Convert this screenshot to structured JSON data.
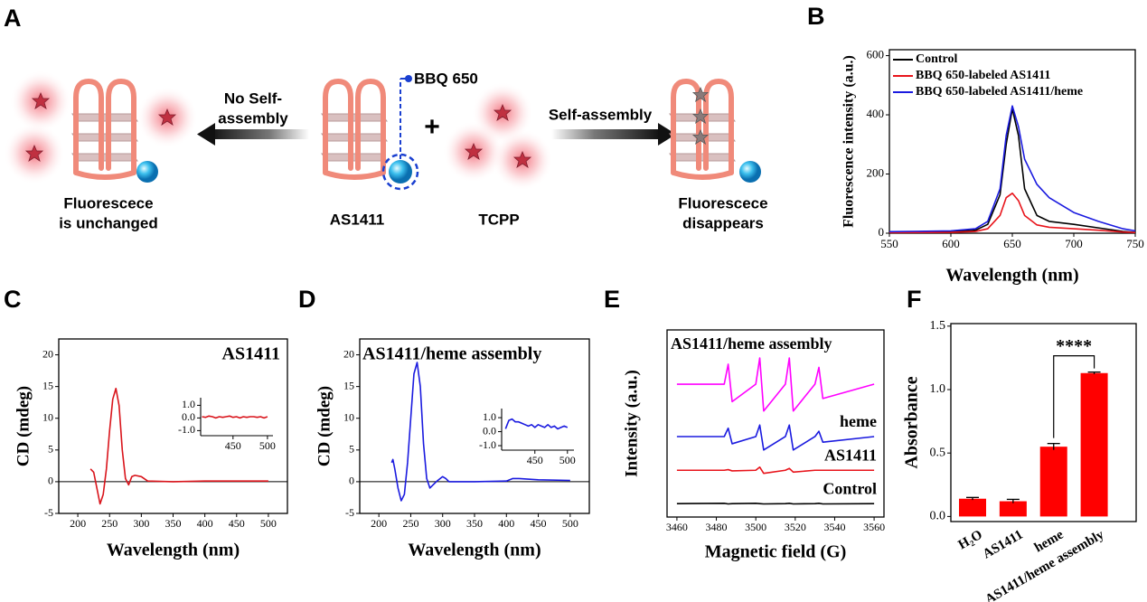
{
  "panel_labels": [
    "A",
    "B",
    "C",
    "D",
    "E",
    "F"
  ],
  "diagram": {
    "probe_label": "BBQ 650",
    "left_arrow_label": [
      "No Self-",
      "assembly"
    ],
    "right_arrow_label": "Self-assembly",
    "plus": "+",
    "center_labels": [
      "AS1411",
      "TCPP"
    ],
    "left_caption": [
      "Fluorescece",
      "is unchanged"
    ],
    "right_caption": [
      "Fluorescece",
      "disappears"
    ]
  },
  "chart_data": [
    {
      "type": "line",
      "xlabel": "Wavelength (nm)",
      "ylabel": "Fluorescence intensity (a.u.)",
      "x": [
        550,
        600,
        620,
        630,
        640,
        645,
        650,
        655,
        660,
        670,
        680,
        700,
        720,
        740,
        750
      ],
      "series": [
        {
          "name": "Control",
          "color": "#000000",
          "values": [
            3,
            5,
            10,
            30,
            130,
            300,
            420,
            330,
            150,
            60,
            40,
            30,
            18,
            6,
            3
          ]
        },
        {
          "name": "BBQ 650-labeled AS1411",
          "color": "#e8141b",
          "values": [
            2,
            3,
            6,
            15,
            60,
            120,
            135,
            110,
            60,
            28,
            20,
            15,
            10,
            4,
            2
          ]
        },
        {
          "name": "BBQ 650-labeled AS1411/heme",
          "color": "#1a1adf",
          "values": [
            5,
            8,
            15,
            40,
            150,
            330,
            430,
            360,
            250,
            165,
            120,
            70,
            40,
            15,
            8
          ]
        }
      ],
      "xlim": [
        550,
        750
      ],
      "ylim": [
        0,
        620
      ],
      "xticks": [
        550,
        600,
        650,
        700,
        750
      ],
      "yticks": [
        0,
        200,
        400,
        600
      ],
      "legend": "upper left"
    },
    {
      "type": "line",
      "title": "AS1411",
      "xlabel": "Wavelength (nm)",
      "ylabel": "CD (mdeg)",
      "x": [
        220,
        225,
        230,
        235,
        240,
        245,
        250,
        255,
        260,
        265,
        270,
        275,
        280,
        285,
        290,
        300,
        310,
        350,
        400,
        450,
        500
      ],
      "values": [
        2,
        1.5,
        -1,
        -3.5,
        -2,
        2,
        8,
        13,
        14.7,
        12,
        5,
        0.5,
        -0.5,
        0.8,
        1,
        0.8,
        0.1,
        0,
        0.1,
        0.1,
        0.1
      ],
      "color": "#d9141b",
      "xlim": [
        170,
        530
      ],
      "ylim": [
        -5,
        22.5
      ],
      "xticks": [
        200,
        250,
        300,
        350,
        400,
        450,
        500
      ],
      "yticks": [
        -5,
        0,
        5,
        10,
        15,
        20
      ],
      "zero_line": true,
      "inset": {
        "x": [
          405,
          410,
          415,
          420,
          425,
          430,
          435,
          440,
          445,
          450,
          455,
          460,
          465,
          470,
          475,
          480,
          485,
          490,
          495,
          500
        ],
        "values": [
          0.1,
          0.05,
          0.15,
          0.1,
          0,
          0.1,
          0.05,
          0.1,
          0.15,
          0.05,
          0.1,
          0,
          0.1,
          0.05,
          0.1,
          0.1,
          0.05,
          0.1,
          0,
          0.1
        ],
        "xlim": [
          403,
          508
        ],
        "ylim": [
          -1.4,
          1.6
        ],
        "xticks": [
          450,
          500
        ],
        "yticks": [
          {
            "value": 1,
            "label": "1.0"
          },
          {
            "value": 0,
            "label": "0.0"
          },
          {
            "value": -1,
            "label": "-1.0"
          }
        ]
      }
    },
    {
      "type": "line",
      "title": "AS1411/heme assembly",
      "xlabel": "Wavelength (nm)",
      "ylabel": "CD (mdeg)",
      "x": [
        220,
        222,
        225,
        230,
        235,
        240,
        245,
        250,
        255,
        260,
        265,
        270,
        275,
        280,
        290,
        300,
        305,
        310,
        350,
        400,
        410,
        420,
        450,
        500
      ],
      "values": [
        3,
        3.5,
        2,
        -1,
        -3,
        -2,
        3,
        10,
        17,
        18.8,
        15,
        6,
        0.5,
        -1,
        0,
        0.8,
        0.5,
        0,
        0,
        0.1,
        0.5,
        0.5,
        0.3,
        0.2
      ],
      "color": "#1a1adf",
      "xlim": [
        170,
        530
      ],
      "ylim": [
        -5,
        22.5
      ],
      "xticks": [
        200,
        250,
        300,
        350,
        400,
        450,
        500
      ],
      "yticks": [
        -5,
        0,
        5,
        10,
        15,
        20
      ],
      "zero_line": true,
      "inset": {
        "x": [
          405,
          410,
          415,
          420,
          425,
          430,
          435,
          440,
          445,
          450,
          455,
          460,
          465,
          470,
          475,
          480,
          485,
          490,
          495,
          500
        ],
        "values": [
          0.2,
          0.8,
          0.9,
          0.7,
          0.7,
          0.6,
          0.5,
          0.4,
          0.5,
          0.3,
          0.5,
          0.4,
          0.3,
          0.5,
          0.3,
          0.4,
          0.2,
          0.3,
          0.4,
          0.3
        ],
        "xlim": [
          399,
          510
        ],
        "ylim": [
          -1.32,
          1.65
        ],
        "xticks": [
          450,
          500
        ],
        "yticks": [
          {
            "value": 1,
            "label": "1.0"
          },
          {
            "value": 0,
            "label": "0.0"
          },
          {
            "value": -1,
            "label": "-1.0"
          }
        ]
      }
    },
    {
      "type": "line",
      "xlabel": "Magnetic field (G)",
      "ylabel": "Intensity (a.u.)",
      "x": [
        3460,
        3484,
        3486,
        3488,
        3500,
        3502,
        3504,
        3515,
        3517,
        3519,
        3530,
        3532,
        3534,
        3560
      ],
      "series": [
        {
          "name": "AS1411/heme assembly",
          "color": "#ff00ff",
          "values": [
            4.26,
            4.26,
            4.9,
            3.7,
            4.26,
            5.1,
            3.4,
            4.26,
            5.1,
            3.4,
            4.26,
            4.8,
            3.8,
            4.26
          ]
        },
        {
          "name": "heme",
          "color": "#1a1adf",
          "values": [
            2.58,
            2.58,
            2.85,
            2.35,
            2.58,
            2.95,
            2.15,
            2.58,
            2.95,
            2.15,
            2.58,
            2.75,
            2.4,
            2.58
          ]
        },
        {
          "name": "AS1411",
          "color": "#e8141b",
          "values": [
            1.5,
            1.5,
            1.52,
            1.48,
            1.5,
            1.6,
            1.4,
            1.5,
            1.56,
            1.44,
            1.5,
            1.5,
            1.5,
            1.5
          ]
        },
        {
          "name": "Control",
          "color": "#000000",
          "values": [
            0.43,
            0.44,
            0.42,
            0.43,
            0.44,
            0.43,
            0.42,
            0.43,
            0.44,
            0.42,
            0.43,
            0.44,
            0.42,
            0.43
          ]
        }
      ],
      "xlim": [
        3455,
        3565
      ],
      "ylim": [
        0,
        6
      ],
      "xticks": [
        3460,
        3480,
        3500,
        3520,
        3540,
        3560
      ]
    },
    {
      "type": "bar",
      "ylabel": "Absorbance",
      "categories": [
        "H₂O",
        "AS1411",
        "heme",
        "AS1411/heme assembly"
      ],
      "values": [
        0.14,
        0.12,
        0.55,
        1.13
      ],
      "errors": [
        0.01,
        0.015,
        0.025,
        0.008
      ],
      "color": "#ff0000",
      "ylim": [
        -0.04,
        1.52
      ],
      "yticks": [
        {
          "value": 0,
          "label": "0.0"
        },
        0.5,
        {
          "value": 1,
          "label": "1.0"
        },
        1.5
      ],
      "annotation": "****"
    }
  ]
}
